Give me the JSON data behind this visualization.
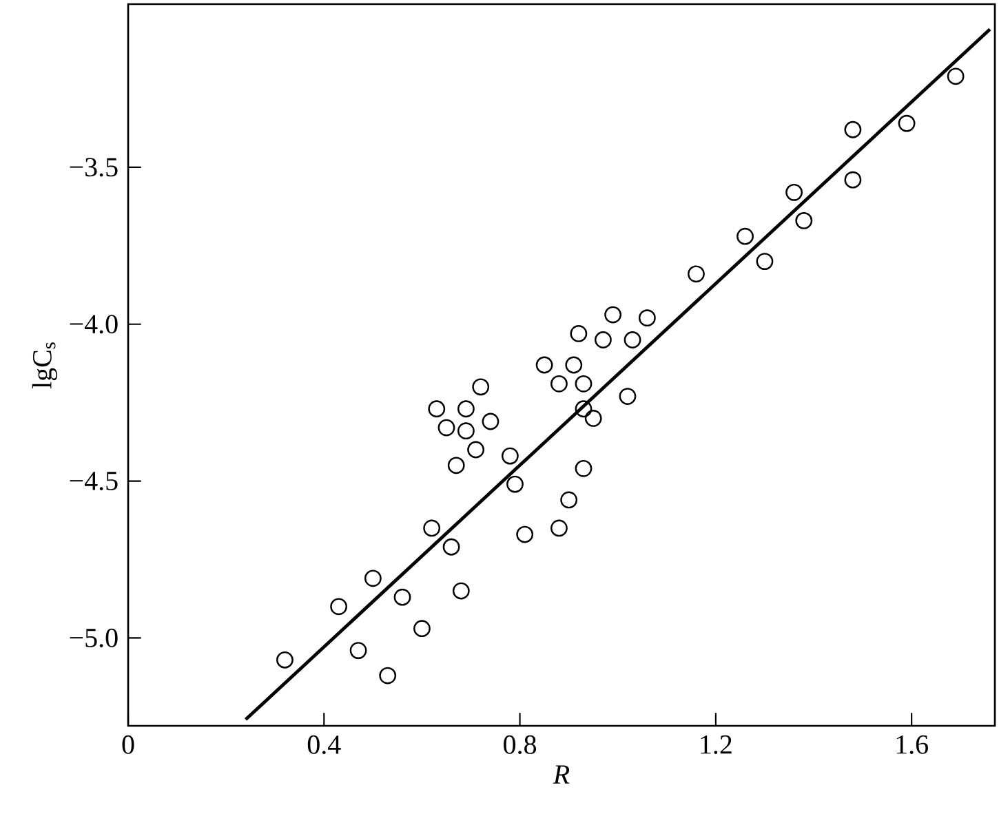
{
  "chart_data": {
    "type": "scatter",
    "xlabel": "R",
    "ylabel": "lgC$_{s}$",
    "xlim": [
      0,
      1.77
    ],
    "ylim": [
      -5.28,
      -2.98
    ],
    "xticks": [
      0,
      0.4,
      0.8,
      1.2,
      1.6
    ],
    "yticks": [
      {
        "value": -5.0,
        "label": "−5.0"
      },
      {
        "value": -4.5,
        "label": "−4.5"
      },
      {
        "value": -4.0,
        "label": "−4.0"
      },
      {
        "value": -3.5,
        "label": "−3.5"
      }
    ],
    "grid": false,
    "series": [
      {
        "marker": "circle",
        "color": "#000000",
        "x": [
          0.32,
          0.43,
          0.47,
          0.5,
          0.53,
          0.56,
          0.6,
          0.62,
          0.63,
          0.65,
          0.66,
          0.68,
          0.67,
          0.69,
          0.69,
          0.71,
          0.72,
          0.74,
          0.78,
          0.79,
          0.81,
          0.85,
          0.88,
          0.88,
          0.9,
          0.91,
          0.92,
          0.93,
          0.93,
          0.93,
          0.95,
          0.97,
          0.99,
          1.02,
          1.03,
          1.06,
          1.16,
          1.26,
          1.3,
          1.36,
          1.38,
          1.48,
          1.48,
          1.59,
          1.69
        ],
        "values": [
          -5.07,
          -4.9,
          -5.04,
          -4.81,
          -5.12,
          -4.87,
          -4.97,
          -4.65,
          -4.27,
          -4.33,
          -4.71,
          -4.85,
          -4.45,
          -4.27,
          -4.34,
          -4.4,
          -4.2,
          -4.31,
          -4.42,
          -4.51,
          -4.67,
          -4.13,
          -4.19,
          -4.65,
          -4.56,
          -4.13,
          -4.03,
          -4.19,
          -4.27,
          -4.46,
          -4.3,
          -4.05,
          -3.97,
          -4.23,
          -4.05,
          -3.98,
          -3.84,
          -3.72,
          -3.8,
          -3.58,
          -3.67,
          -3.38,
          -3.54,
          -3.36,
          -3.21
        ]
      },
      {
        "type": "line",
        "line_style": "solid",
        "color": "#000000",
        "x": [
          0.24,
          1.76
        ],
        "values": [
          -5.26,
          -3.06
        ]
      }
    ]
  }
}
